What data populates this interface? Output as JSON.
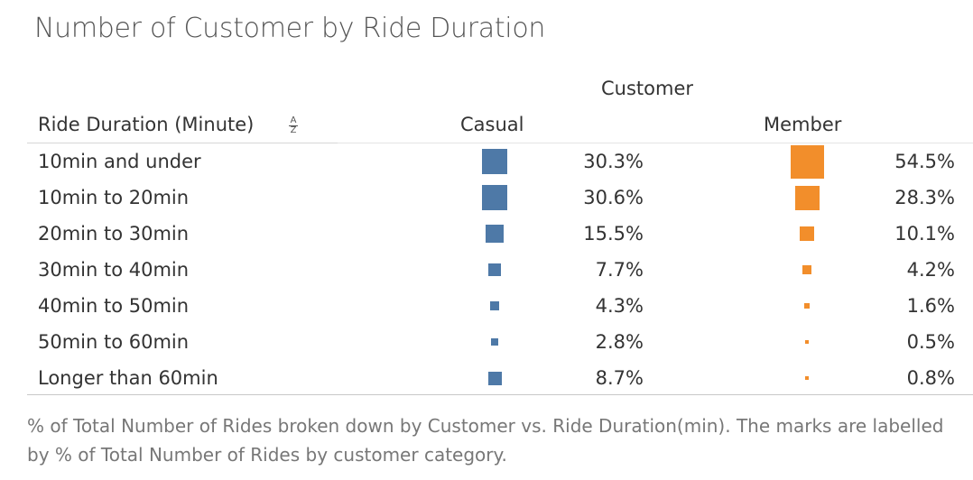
{
  "title": "Number of Customer by Ride Duration",
  "column_group_label": "Customer",
  "row_header": "Ride Duration (Minute)",
  "sort_icon": {
    "name": "sort-az-icon",
    "top": "A",
    "bottom": "Z"
  },
  "columns": [
    "Casual",
    "Member"
  ],
  "chart_data": {
    "type": "table",
    "title": "Number of Customer by Ride Duration",
    "column_group": "Customer",
    "row_dimension": "Ride Duration (Minute)",
    "categories": [
      "10min and under",
      "10min to 20min",
      "20min to 30min",
      "30min to 40min",
      "40min to 50min",
      "50min to 60min",
      "Longer than 60min"
    ],
    "series": [
      {
        "name": "Casual",
        "values": [
          30.3,
          30.6,
          15.5,
          7.7,
          4.3,
          2.8,
          8.7
        ],
        "labels": [
          "30.3%",
          "30.6%",
          "15.5%",
          "7.7%",
          "4.3%",
          "2.8%",
          "8.7%"
        ],
        "color": "#4e79a7"
      },
      {
        "name": "Member",
        "values": [
          54.5,
          28.3,
          10.1,
          4.2,
          1.6,
          0.5,
          0.8
        ],
        "labels": [
          "54.5%",
          "28.3%",
          "10.1%",
          "4.2%",
          "1.6%",
          "0.5%",
          "0.8%"
        ],
        "color": "#f28e2b"
      }
    ],
    "mark": "square sized by value"
  },
  "caption": "% of Total Number of Rides broken down by Customer vs. Ride Duration(min).  The marks are labelled by % of Total Number of Rides by customer category."
}
